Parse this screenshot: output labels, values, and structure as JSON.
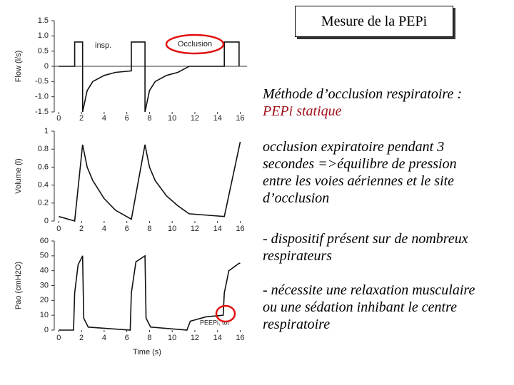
{
  "slide": {
    "title": "Mesure de la PEPi",
    "paragraphs": [
      {
        "text": "Méthode d’occlusion respiratoire :",
        "highlight": "PEPi statique"
      },
      {
        "text": "occlusion expiratoire pendant 3 secondes =>équilibre de pression entre les voies aériennes et le site d’occlusion"
      },
      {
        "text": "- dispositif présent sur de nombreux respirateurs"
      },
      {
        "text": "- nécessite une relaxation musculaire ou une sédation inhibant le centre respiratoire"
      }
    ]
  },
  "chart_data": [
    {
      "type": "line",
      "y_label": "Flow (l/s)",
      "color": "#111",
      "xlim": [
        -0.4,
        16.6
      ],
      "xticks": [
        0,
        2,
        4,
        6,
        8,
        10,
        12,
        14,
        16
      ],
      "ylim": [
        -1.5,
        1.5
      ],
      "yticks": [
        {
          "value": 1.5,
          "label": "1.5"
        },
        {
          "value": 1,
          "label": "1.0"
        },
        0.5,
        0,
        -0.5,
        {
          "value": -1,
          "label": "-1.0"
        },
        -1.5
      ],
      "x": [
        0,
        1.4,
        1.4,
        2.1,
        2.1,
        2.5,
        3,
        4,
        5,
        6.4,
        6.4,
        7.6,
        7.6,
        8,
        8.5,
        9.5,
        10.5,
        11.5,
        14.6,
        14.6,
        15.9,
        15.9
      ],
      "values": [
        0,
        0,
        0.8,
        0.8,
        -1.5,
        -0.8,
        -0.5,
        -0.3,
        -0.2,
        -0.15,
        0.8,
        0.8,
        -1.5,
        -0.8,
        -0.5,
        -0.3,
        -0.2,
        0,
        0,
        0.8,
        0.8,
        0
      ],
      "annotations": [
        "insp.",
        "Occlusion"
      ]
    },
    {
      "type": "line",
      "y_label": "Volume (l)",
      "color": "#111",
      "xlim": [
        -0.4,
        16.6
      ],
      "xticks": [
        0,
        2,
        4,
        6,
        8,
        10,
        12,
        14,
        16
      ],
      "ylim": [
        0,
        1
      ],
      "yticks": [
        1,
        0.8,
        0.6,
        0.4,
        0.2,
        0
      ],
      "x": [
        0,
        1.4,
        2.1,
        2.5,
        3,
        4,
        5,
        6.4,
        7.6,
        8,
        8.5,
        9.5,
        10.5,
        11.5,
        14.6,
        16
      ],
      "values": [
        0.05,
        0,
        0.85,
        0.6,
        0.45,
        0.25,
        0.12,
        0.02,
        0.85,
        0.6,
        0.45,
        0.28,
        0.17,
        0.08,
        0.05,
        0.88
      ]
    },
    {
      "type": "line",
      "y_label": "Pao (cmH2O)",
      "x_label": "Time (s)",
      "color": "#111",
      "xlim": [
        -0.4,
        16.6
      ],
      "xticks": [
        0,
        2,
        4,
        6,
        8,
        10,
        12,
        14,
        16
      ],
      "ylim": [
        0,
        60
      ],
      "yticks": [
        60,
        50,
        40,
        30,
        20,
        10,
        0
      ],
      "x": [
        0,
        1.3,
        1.4,
        1.7,
        2.1,
        2.2,
        2.6,
        6.3,
        6.4,
        6.8,
        7.6,
        7.7,
        8.1,
        11.3,
        11.6,
        13,
        14.5,
        14.6,
        15,
        15.9,
        16
      ],
      "values": [
        0,
        0,
        25,
        44,
        50,
        8,
        2,
        0,
        25,
        46,
        50,
        8,
        2,
        0,
        6,
        9,
        10,
        25,
        40,
        45,
        45
      ],
      "annotations": [
        "PEEPi, tot"
      ]
    }
  ]
}
